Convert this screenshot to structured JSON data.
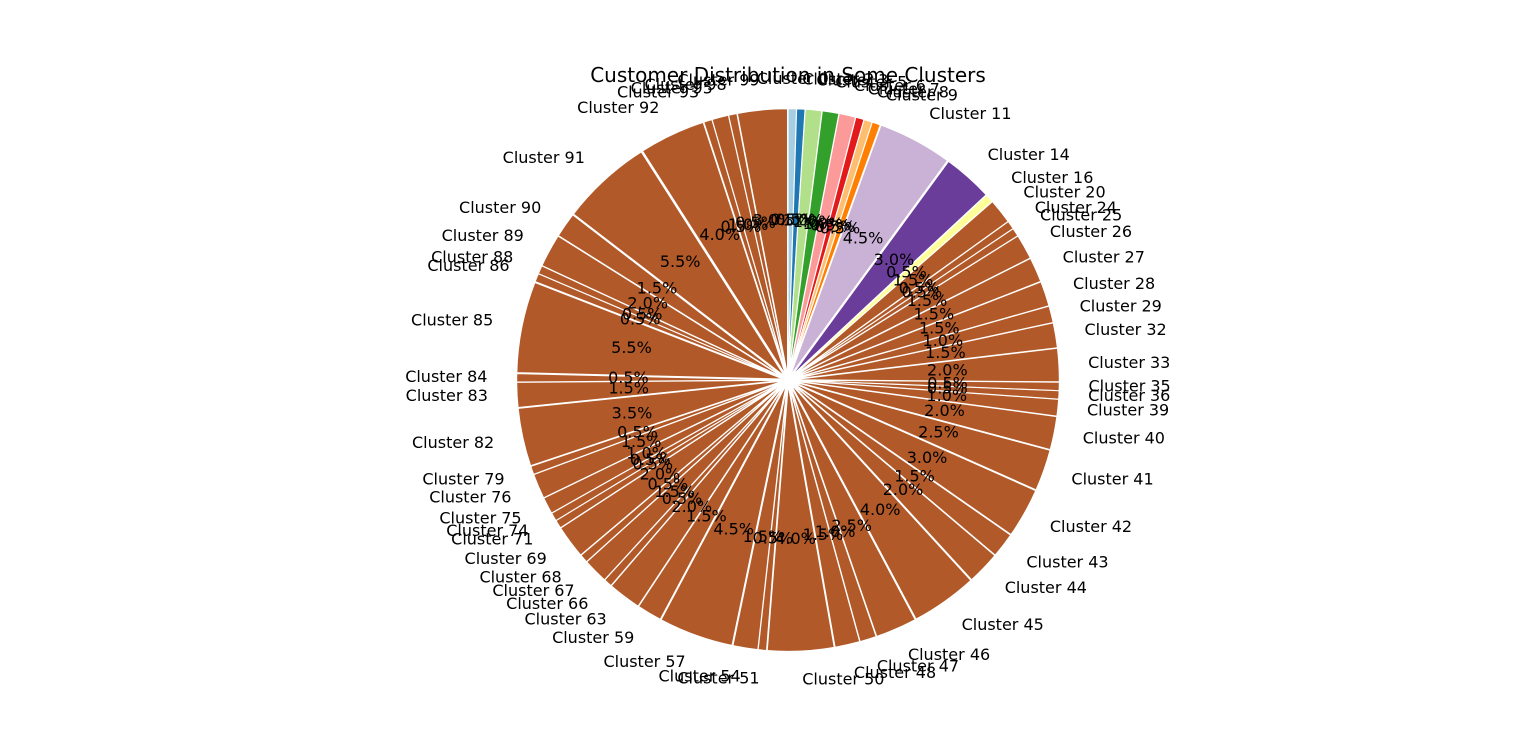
{
  "chart_data": {
    "type": "pie",
    "title": "Customer Distribution in Some Clusters",
    "start_angle_deg": 90,
    "direction": "clockwise",
    "legend": "none",
    "slices": [
      {
        "label": "Cluster 0",
        "pct": "0.5%",
        "value": 0.5,
        "color": "#a6cee3",
        "explode": 0.02
      },
      {
        "label": "Cluster 2",
        "pct": "0.5%",
        "value": 0.5,
        "color": "#1f78b4",
        "explode": 0.02
      },
      {
        "label": "Cluster 3",
        "pct": "1.0%",
        "value": 1.0,
        "color": "#b2df8a",
        "explode": 0.02
      },
      {
        "label": "Cluster 5",
        "pct": "1.0%",
        "value": 1.0,
        "color": "#33a02c",
        "explode": 0.02
      },
      {
        "label": "Cluster 6",
        "pct": "1.0%",
        "value": 1.0,
        "color": "#fb9a99",
        "explode": 0.02
      },
      {
        "label": "Cluster 7",
        "pct": "0.5%",
        "value": 0.5,
        "color": "#e31a1c",
        "explode": 0.02
      },
      {
        "label": "Cluster 8",
        "pct": "0.5%",
        "value": 0.5,
        "color": "#fdbf6f",
        "explode": 0.02
      },
      {
        "label": "Cluster 9",
        "pct": "0.5%",
        "value": 0.5,
        "color": "#ff7f00",
        "explode": 0.02
      },
      {
        "label": "Cluster 11",
        "pct": "4.5%",
        "value": 4.5,
        "color": "#cab2d6",
        "explode": 0.02
      },
      {
        "label": "Cluster 14",
        "pct": "3.0%",
        "value": 3.0,
        "color": "#6a3d9a",
        "explode": 0.02
      },
      {
        "label": "Cluster 16",
        "pct": "0.5%",
        "value": 0.5,
        "color": "#ffff99",
        "explode": 0.02
      },
      {
        "label": "Cluster 20",
        "pct": "1.5%",
        "value": 1.5,
        "color": "#b15928",
        "explode": 0.02
      },
      {
        "label": "Cluster 24",
        "pct": "0.5%",
        "value": 0.5,
        "color": "#b15928",
        "explode": 0.02
      },
      {
        "label": "Cluster 25",
        "pct": "0.5%",
        "value": 0.5,
        "color": "#b15928",
        "explode": 0.02
      },
      {
        "label": "Cluster 26",
        "pct": "1.5%",
        "value": 1.5,
        "color": "#b15928",
        "explode": 0.02
      },
      {
        "label": "Cluster 27",
        "pct": "1.5%",
        "value": 1.5,
        "color": "#b15928",
        "explode": 0.02
      },
      {
        "label": "Cluster 28",
        "pct": "1.5%",
        "value": 1.5,
        "color": "#b15928",
        "explode": 0.02
      },
      {
        "label": "Cluster 29",
        "pct": "1.0%",
        "value": 1.0,
        "color": "#b15928",
        "explode": 0.02
      },
      {
        "label": "Cluster 32",
        "pct": "1.5%",
        "value": 1.5,
        "color": "#b15928",
        "explode": 0.02
      },
      {
        "label": "Cluster 33",
        "pct": "2.0%",
        "value": 2.0,
        "color": "#b15928",
        "explode": 0.02
      },
      {
        "label": "Cluster 35",
        "pct": "0.5%",
        "value": 0.5,
        "color": "#b15928",
        "explode": 0.02
      },
      {
        "label": "Cluster 36",
        "pct": "0.5%",
        "value": 0.5,
        "color": "#b15928",
        "explode": 0.02
      },
      {
        "label": "Cluster 39",
        "pct": "1.0%",
        "value": 1.0,
        "color": "#b15928",
        "explode": 0.02
      },
      {
        "label": "Cluster 40",
        "pct": "2.0%",
        "value": 2.0,
        "color": "#b15928",
        "explode": 0.02
      },
      {
        "label": "Cluster 41",
        "pct": "2.5%",
        "value": 2.5,
        "color": "#b15928",
        "explode": 0.02
      },
      {
        "label": "Cluster 42",
        "pct": "3.0%",
        "value": 3.0,
        "color": "#b15928",
        "explode": 0.02
      },
      {
        "label": "Cluster 43",
        "pct": "1.5%",
        "value": 1.5,
        "color": "#b15928",
        "explode": 0.02
      },
      {
        "label": "Cluster 44",
        "pct": "2.0%",
        "value": 2.0,
        "color": "#b15928",
        "explode": 0.02
      },
      {
        "label": "Cluster 45",
        "pct": "4.0%",
        "value": 4.0,
        "color": "#b15928",
        "explode": 0.02
      },
      {
        "label": "Cluster 46",
        "pct": "2.5%",
        "value": 2.5,
        "color": "#b15928",
        "explode": 0.02
      },
      {
        "label": "Cluster 47",
        "pct": "1.0%",
        "value": 1.0,
        "color": "#b15928",
        "explode": 0.02
      },
      {
        "label": "Cluster 48",
        "pct": "1.5%",
        "value": 1.5,
        "color": "#b15928",
        "explode": 0.02
      },
      {
        "label": "Cluster 50",
        "pct": "4.0%",
        "value": 4.0,
        "color": "#b15928",
        "explode": 0.02
      },
      {
        "label": "Cluster 51",
        "pct": "0.5%",
        "value": 0.5,
        "color": "#b15928",
        "explode": 0.02
      },
      {
        "label": "Cluster 54",
        "pct": "1.5%",
        "value": 1.5,
        "color": "#b15928",
        "explode": 0.02
      },
      {
        "label": "Cluster 57",
        "pct": "4.5%",
        "value": 4.5,
        "color": "#b15928",
        "explode": 0.02
      },
      {
        "label": "Cluster 59",
        "pct": "1.5%",
        "value": 1.5,
        "color": "#b15928",
        "explode": 0.02
      },
      {
        "label": "Cluster 63",
        "pct": "2.0%",
        "value": 2.0,
        "color": "#b15928",
        "explode": 0.02
      },
      {
        "label": "Cluster 66",
        "pct": "0.5%",
        "value": 0.5,
        "color": "#b15928",
        "explode": 0.02
      },
      {
        "label": "Cluster 67",
        "pct": "1.5%",
        "value": 1.5,
        "color": "#b15928",
        "explode": 0.02
      },
      {
        "label": "Cluster 68",
        "pct": "0.5%",
        "value": 0.5,
        "color": "#b15928",
        "explode": 0.02
      },
      {
        "label": "Cluster 69",
        "pct": "2.0%",
        "value": 2.0,
        "color": "#b15928",
        "explode": 0.02
      },
      {
        "label": "Cluster 71",
        "pct": "0.5%",
        "value": 0.5,
        "color": "#b15928",
        "explode": 0.02
      },
      {
        "label": "Cluster 74",
        "pct": "0.5%",
        "value": 0.5,
        "color": "#b15928",
        "explode": 0.02
      },
      {
        "label": "Cluster 75",
        "pct": "1.0%",
        "value": 1.0,
        "color": "#b15928",
        "explode": 0.02
      },
      {
        "label": "Cluster 76",
        "pct": "1.5%",
        "value": 1.5,
        "color": "#b15928",
        "explode": 0.02
      },
      {
        "label": "Cluster 79",
        "pct": "0.5%",
        "value": 0.5,
        "color": "#b15928",
        "explode": 0.02
      },
      {
        "label": "Cluster 82",
        "pct": "3.5%",
        "value": 3.5,
        "color": "#b15928",
        "explode": 0.02
      },
      {
        "label": "Cluster 83",
        "pct": "1.5%",
        "value": 1.5,
        "color": "#b15928",
        "explode": 0.02
      },
      {
        "label": "Cluster 84",
        "pct": "0.5%",
        "value": 0.5,
        "color": "#b15928",
        "explode": 0.02
      },
      {
        "label": "Cluster 85",
        "pct": "5.5%",
        "value": 5.5,
        "color": "#b15928",
        "explode": 0.02
      },
      {
        "label": "Cluster 86",
        "pct": "0.5%",
        "value": 0.5,
        "color": "#b15928",
        "explode": 0.02
      },
      {
        "label": "Cluster 88",
        "pct": "0.5%",
        "value": 0.5,
        "color": "#b15928",
        "explode": 0.02
      },
      {
        "label": "Cluster 89",
        "pct": "2.0%",
        "value": 2.0,
        "color": "#b15928",
        "explode": 0.02
      },
      {
        "label": "Cluster 90",
        "pct": "1.5%",
        "value": 1.5,
        "color": "#b15928",
        "explode": 0.02
      },
      {
        "label": "Cluster 91",
        "pct": "5.5%",
        "value": 5.5,
        "color": "#b15928",
        "explode": 0.02
      },
      {
        "label": "Cluster 92",
        "pct": "4.0%",
        "value": 4.0,
        "color": "#b15928",
        "explode": 0.02
      },
      {
        "label": "Cluster 93",
        "pct": "0.5%",
        "value": 0.5,
        "color": "#b15928",
        "explode": 0.02
      },
      {
        "label": "Cluster 95",
        "pct": "1.0%",
        "value": 1.0,
        "color": "#b15928",
        "explode": 0.02
      },
      {
        "label": "Cluster 98",
        "pct": "0.5%",
        "value": 0.5,
        "color": "#b15928",
        "explode": 0.02
      },
      {
        "label": "Cluster 99",
        "pct": "3.0%",
        "value": 3.0,
        "color": "#b15928",
        "explode": 0.02
      }
    ]
  }
}
